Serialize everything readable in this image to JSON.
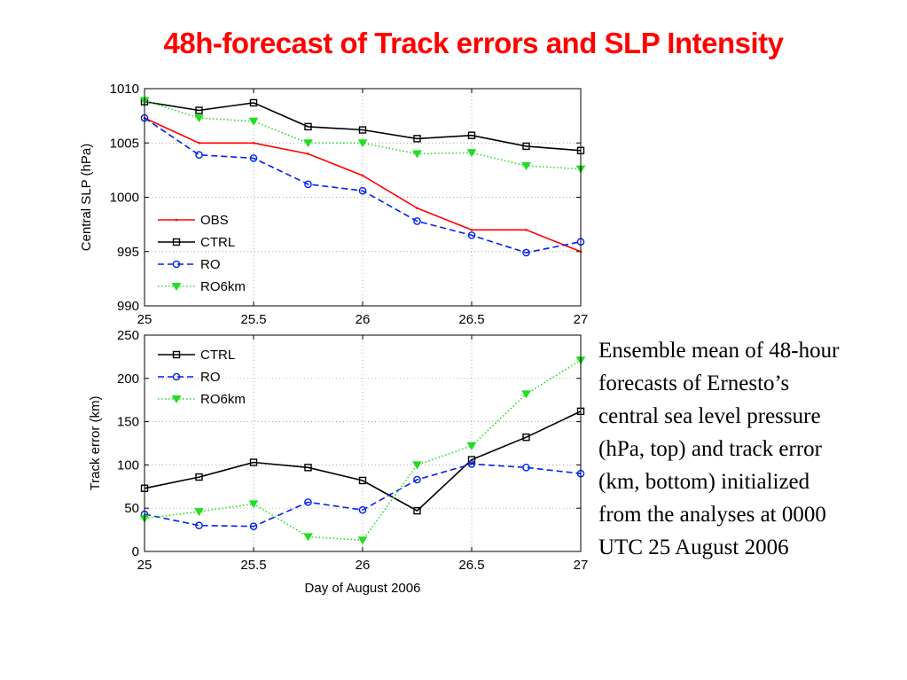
{
  "slide": {
    "title": "48h-forecast of Track errors and SLP Intensity",
    "caption_lines": [
      "Ensemble mean of 48-hour",
      "forecasts of Ernesto’s",
      "central sea level pressure",
      "(hPa, top) and track error",
      "(km, bottom) initialized",
      "from the analyses at 0000",
      "UTC 25 August 2006"
    ]
  },
  "chart_data": [
    {
      "type": "line",
      "title": "",
      "xlabel": "",
      "ylabel": "Central SLP (hPa)",
      "xlim": [
        25,
        27
      ],
      "ylim": [
        990,
        1010
      ],
      "xticks": [
        "25",
        "25.5",
        "26",
        "26.5",
        "27"
      ],
      "yticks": [
        "990",
        "995",
        "1000",
        "1005",
        "1010"
      ],
      "grid": true,
      "legend_position": "bottom-left",
      "x": [
        25,
        25.25,
        25.5,
        25.75,
        26,
        26.25,
        26.5,
        26.75,
        27
      ],
      "series": [
        {
          "name": "OBS",
          "color": "#ff0000",
          "style": "solid",
          "marker": "dot",
          "values": [
            1007.3,
            1005.0,
            1005.0,
            1004.0,
            1002.0,
            999.0,
            997.0,
            997.0,
            995.0
          ]
        },
        {
          "name": "CTRL",
          "color": "#000000",
          "style": "solid",
          "marker": "square",
          "values": [
            1008.8,
            1008.0,
            1008.7,
            1006.5,
            1006.2,
            1005.4,
            1005.7,
            1004.7,
            1004.3
          ]
        },
        {
          "name": "RO",
          "color": "#0022ee",
          "style": "dashed",
          "marker": "circle",
          "values": [
            1007.3,
            1003.9,
            1003.6,
            1001.2,
            1000.6,
            997.8,
            996.5,
            994.9,
            995.9
          ]
        },
        {
          "name": "RO6km",
          "color": "#22dd22",
          "style": "dotted",
          "marker": "triangle-down",
          "values": [
            1008.9,
            1007.3,
            1007.0,
            1005.0,
            1005.0,
            1004.0,
            1004.1,
            1002.9,
            1002.6
          ]
        }
      ]
    },
    {
      "type": "line",
      "title": "",
      "xlabel": "Day of August 2006",
      "ylabel": "Track error (km)",
      "xlim": [
        25,
        27
      ],
      "ylim": [
        0,
        250
      ],
      "xticks": [
        "25",
        "25.5",
        "26",
        "26.5",
        "27"
      ],
      "yticks": [
        "0",
        "50",
        "100",
        "150",
        "200",
        "250"
      ],
      "grid": true,
      "legend_position": "top-left",
      "x": [
        25,
        25.25,
        25.5,
        25.75,
        26,
        26.25,
        26.5,
        26.75,
        27
      ],
      "series": [
        {
          "name": "CTRL",
          "color": "#000000",
          "style": "solid",
          "marker": "square",
          "values": [
            73,
            86,
            103,
            97,
            82,
            47,
            106,
            132,
            162
          ]
        },
        {
          "name": "RO",
          "color": "#0022ee",
          "style": "dashed",
          "marker": "circle",
          "values": [
            43,
            30,
            29,
            57,
            48,
            83,
            101,
            97,
            90
          ]
        },
        {
          "name": "RO6km",
          "color": "#22dd22",
          "style": "dotted",
          "marker": "triangle-down",
          "values": [
            38,
            46,
            55,
            17,
            13,
            100,
            122,
            182,
            221
          ]
        }
      ]
    }
  ]
}
